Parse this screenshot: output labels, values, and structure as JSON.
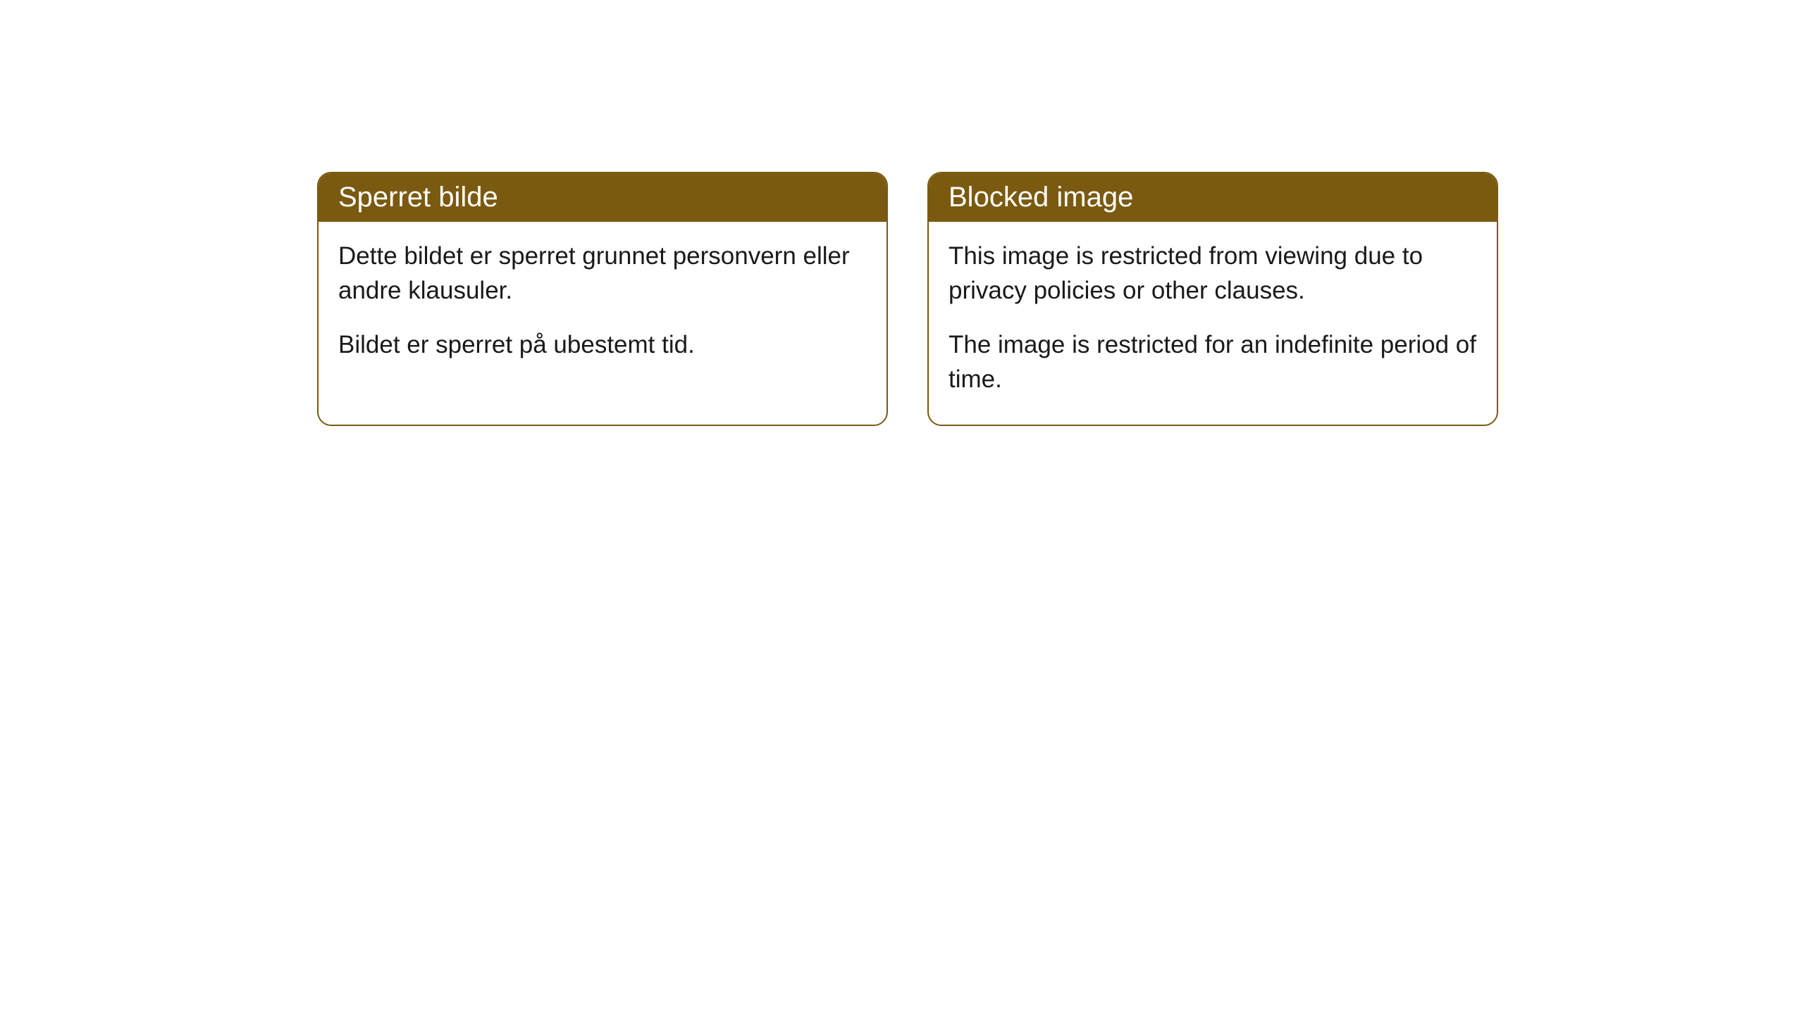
{
  "cards": [
    {
      "title": "Sperret bilde",
      "paragraph1": "Dette bildet er sperret grunnet personvern eller andre klausuler.",
      "paragraph2": "Bildet er sperret på ubestemt tid."
    },
    {
      "title": "Blocked image",
      "paragraph1": "This image is restricted from viewing due to privacy policies or other clauses.",
      "paragraph2": "The image is restricted for an indefinite period of time."
    }
  ],
  "styling": {
    "header_background": "#7a5a10",
    "header_text_color": "#ffffff",
    "border_color": "#7a5a10",
    "body_background": "#ffffff",
    "body_text_color": "#1a1a1a",
    "border_radius": "20px",
    "title_fontsize": 40,
    "body_fontsize": 35
  }
}
